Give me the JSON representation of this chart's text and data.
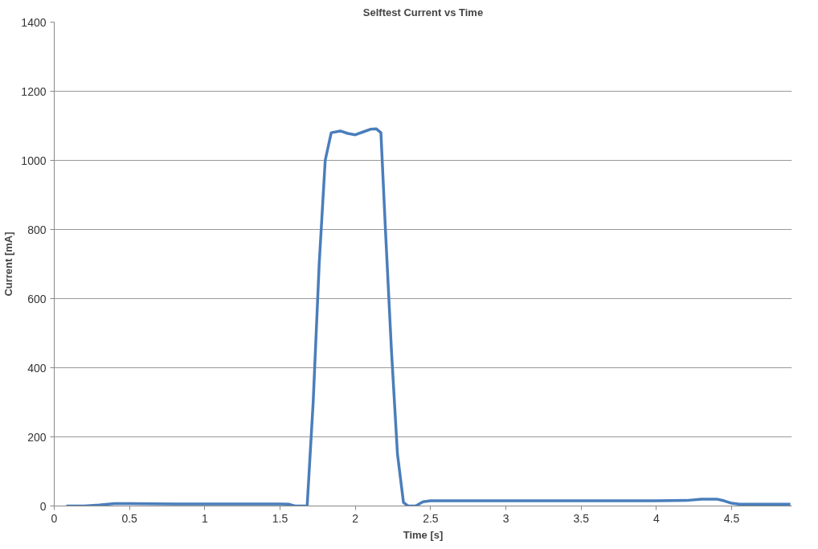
{
  "chart_data": {
    "type": "line",
    "title": "Selftest Current vs Time",
    "xlabel": "Time [s]",
    "ylabel": "Current [mA]",
    "series": [
      {
        "color": "#4a7ebb",
        "x": [
          0.08,
          0.2,
          0.3,
          0.4,
          0.5,
          0.8,
          1.0,
          1.3,
          1.5,
          1.56,
          1.6,
          1.64,
          1.68,
          1.72,
          1.76,
          1.8,
          1.84,
          1.9,
          1.95,
          2.0,
          2.05,
          2.1,
          2.14,
          2.17,
          2.2,
          2.24,
          2.28,
          2.32,
          2.35,
          2.4,
          2.45,
          2.5,
          3.0,
          3.5,
          4.0,
          4.2,
          4.3,
          4.4,
          4.45,
          4.5,
          4.55,
          4.7,
          4.89
        ],
        "values": [
          0,
          0,
          3,
          7,
          7,
          6,
          6,
          6,
          6,
          5,
          0,
          0,
          0,
          300,
          700,
          1000,
          1080,
          1085,
          1078,
          1074,
          1082,
          1090,
          1091,
          1080,
          800,
          450,
          150,
          10,
          0,
          0,
          12,
          15,
          15,
          15,
          15,
          16,
          20,
          20,
          15,
          8,
          5,
          5,
          5
        ]
      }
    ],
    "xlim": [
      0,
      4.9
    ],
    "ylim": [
      0,
      1400
    ],
    "xticks": [
      0,
      0.5,
      1,
      1.5,
      2,
      2.5,
      3,
      3.5,
      4,
      4.5
    ],
    "yticks": [
      0,
      200,
      400,
      600,
      800,
      1000,
      1200,
      1400
    ],
    "grid": "y",
    "marker": "none",
    "line_style": "solid"
  }
}
